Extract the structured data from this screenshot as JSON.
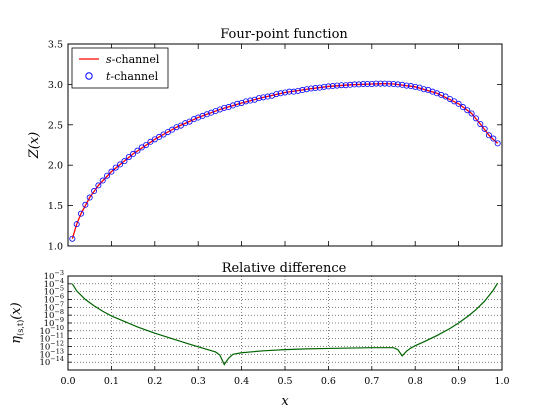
{
  "chart_data": [
    {
      "type": "line",
      "title": "Four-point function",
      "xlabel": "",
      "ylabel": "Z(x)",
      "xlim": [
        0.0,
        1.0
      ],
      "ylim": [
        1.0,
        3.5
      ],
      "x_ticks": [
        0.0,
        0.1,
        0.2,
        0.3,
        0.4,
        0.5,
        0.6,
        0.7,
        0.8,
        0.9,
        1.0
      ],
      "x_tick_labels": [],
      "y_ticks": [
        1.0,
        1.5,
        2.0,
        2.5,
        3.0,
        3.5
      ],
      "y_tick_labels": [
        "1.0",
        "1.5",
        "2.0",
        "2.5",
        "3.0",
        "3.5"
      ],
      "grid": false,
      "legend": {
        "position": "upper-left",
        "entries": [
          {
            "label_italic": "s",
            "label_rest": "-channel",
            "style": "line",
            "color": "#ff0000"
          },
          {
            "label_italic": "t",
            "label_rest": "-channel",
            "style": "circle",
            "color": "#0000ff"
          }
        ]
      },
      "series": [
        {
          "name": "s-channel",
          "style": "line",
          "color": "#ff0000",
          "x": [
            0.01,
            0.02,
            0.03,
            0.05,
            0.07,
            0.1,
            0.15,
            0.2,
            0.25,
            0.3,
            0.35,
            0.4,
            0.45,
            0.5,
            0.55,
            0.6,
            0.65,
            0.7,
            0.73,
            0.75,
            0.8,
            0.85,
            0.9,
            0.93,
            0.95,
            0.97,
            0.99
          ],
          "y": [
            1.09,
            1.27,
            1.4,
            1.6,
            1.75,
            1.92,
            2.14,
            2.32,
            2.47,
            2.59,
            2.69,
            2.77,
            2.84,
            2.9,
            2.94,
            2.975,
            2.995,
            3.005,
            3.01,
            3.005,
            2.97,
            2.89,
            2.76,
            2.64,
            2.51,
            2.37,
            2.27
          ]
        },
        {
          "name": "t-channel",
          "style": "circle",
          "color": "#0000ff",
          "x": [
            0.01,
            0.02,
            0.03,
            0.04,
            0.05,
            0.06,
            0.07,
            0.08,
            0.09,
            0.1,
            0.11,
            0.12,
            0.13,
            0.14,
            0.15,
            0.16,
            0.17,
            0.18,
            0.19,
            0.2,
            0.21,
            0.22,
            0.23,
            0.24,
            0.25,
            0.26,
            0.27,
            0.28,
            0.29,
            0.3,
            0.31,
            0.32,
            0.33,
            0.34,
            0.35,
            0.36,
            0.37,
            0.38,
            0.39,
            0.4,
            0.41,
            0.42,
            0.43,
            0.44,
            0.45,
            0.46,
            0.47,
            0.48,
            0.49,
            0.5,
            0.51,
            0.52,
            0.53,
            0.54,
            0.55,
            0.56,
            0.57,
            0.58,
            0.59,
            0.6,
            0.61,
            0.62,
            0.63,
            0.64,
            0.65,
            0.66,
            0.67,
            0.68,
            0.69,
            0.7,
            0.71,
            0.72,
            0.73,
            0.74,
            0.75,
            0.76,
            0.77,
            0.78,
            0.79,
            0.8,
            0.81,
            0.82,
            0.83,
            0.84,
            0.85,
            0.86,
            0.87,
            0.88,
            0.89,
            0.9,
            0.91,
            0.92,
            0.93,
            0.94,
            0.95,
            0.96,
            0.97,
            0.98,
            0.99
          ],
          "y": [
            1.09,
            1.27,
            1.4,
            1.51,
            1.6,
            1.68,
            1.75,
            1.81,
            1.87,
            1.92,
            1.97,
            2.01,
            2.05,
            2.1,
            2.14,
            2.18,
            2.22,
            2.25,
            2.29,
            2.32,
            2.35,
            2.38,
            2.41,
            2.44,
            2.47,
            2.49,
            2.52,
            2.54,
            2.57,
            2.59,
            2.61,
            2.63,
            2.65,
            2.67,
            2.69,
            2.71,
            2.72,
            2.74,
            2.76,
            2.77,
            2.79,
            2.8,
            2.81,
            2.83,
            2.84,
            2.85,
            2.86,
            2.88,
            2.89,
            2.9,
            2.91,
            2.91,
            2.92,
            2.93,
            2.94,
            2.95,
            2.955,
            2.96,
            2.97,
            2.975,
            2.98,
            2.985,
            2.99,
            2.99,
            2.995,
            3.0,
            3.0,
            3.005,
            3.005,
            3.005,
            3.01,
            3.01,
            3.01,
            3.008,
            3.005,
            3.0,
            2.995,
            2.985,
            2.98,
            2.97,
            2.96,
            2.94,
            2.93,
            2.91,
            2.89,
            2.87,
            2.85,
            2.82,
            2.79,
            2.76,
            2.72,
            2.68,
            2.64,
            2.58,
            2.51,
            2.45,
            2.37,
            2.33,
            2.27
          ]
        }
      ]
    },
    {
      "type": "line",
      "title": "Relative difference",
      "xlabel": "x",
      "ylabel": "η(s,t)(x)",
      "ylabel_main": "η",
      "ylabel_sub": "(s,t)",
      "ylabel_tail": "(x)",
      "xlim": [
        0.0,
        1.0
      ],
      "ylim_log10": [
        -15,
        -3
      ],
      "y_scale": "log",
      "x_ticks": [
        0.0,
        0.1,
        0.2,
        0.3,
        0.4,
        0.5,
        0.6,
        0.7,
        0.8,
        0.9,
        1.0
      ],
      "x_tick_labels": [
        "0.0",
        "0.1",
        "0.2",
        "0.3",
        "0.4",
        "0.5",
        "0.6",
        "0.7",
        "0.8",
        "0.9",
        "1.0"
      ],
      "y_tick_exponents": [
        -3,
        -4,
        -5,
        -6,
        -7,
        -8,
        -9,
        -10,
        -11,
        -12,
        -13,
        -14
      ],
      "y_tick_base": "10",
      "y_tick_minus": "−",
      "grid": true,
      "series": [
        {
          "name": "",
          "color": "#006400",
          "x": [
            0.01,
            0.02,
            0.04,
            0.06,
            0.08,
            0.1,
            0.13,
            0.16,
            0.2,
            0.24,
            0.28,
            0.31,
            0.34,
            0.35,
            0.36,
            0.37,
            0.38,
            0.4,
            0.45,
            0.5,
            0.55,
            0.6,
            0.65,
            0.7,
            0.75,
            0.76,
            0.77,
            0.78,
            0.79,
            0.8,
            0.82,
            0.85,
            0.88,
            0.9,
            0.92,
            0.94,
            0.96,
            0.98,
            0.99
          ],
          "log10_y": [
            -4.0,
            -4.9,
            -6.0,
            -6.8,
            -7.5,
            -8.1,
            -8.8,
            -9.5,
            -10.3,
            -11.0,
            -11.7,
            -12.2,
            -12.7,
            -13.1,
            -14.3,
            -13.5,
            -13.0,
            -12.8,
            -12.55,
            -12.4,
            -12.3,
            -12.25,
            -12.2,
            -12.15,
            -12.15,
            -12.4,
            -13.2,
            -12.6,
            -12.2,
            -11.9,
            -11.4,
            -10.6,
            -9.7,
            -9.0,
            -8.2,
            -7.3,
            -6.2,
            -4.8,
            -3.9
          ]
        }
      ]
    }
  ]
}
